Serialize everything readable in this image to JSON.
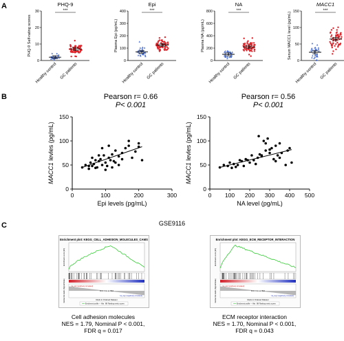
{
  "panels": {
    "a": "A",
    "b": "B",
    "c": "C"
  },
  "panel_a": [
    {
      "title": "PHQ-9",
      "ylabel": "PHQ-9 Self-rating scores",
      "ticks": [
        "0",
        "10",
        "20",
        "30"
      ],
      "ymax": 30,
      "sig": "***",
      "groups": [
        "Healthy control",
        "GC patients"
      ],
      "means": [
        2,
        7
      ],
      "italic": false
    },
    {
      "title": "Epi",
      "ylabel": "Plasma Epi (pg/mL)",
      "ticks": [
        "0",
        "100",
        "200",
        "300",
        "400"
      ],
      "ymax": 400,
      "sig": "***",
      "groups": [
        "Healthy control",
        "GC patients"
      ],
      "means": [
        70,
        125
      ],
      "italic": false
    },
    {
      "title": "NA",
      "ylabel": "Plasma NA (pg/mL)",
      "ticks": [
        "0",
        "200",
        "400",
        "600",
        "800"
      ],
      "ymax": 800,
      "sig": "***",
      "groups": [
        "Healthy control",
        "GC patients"
      ],
      "means": [
        100,
        220
      ],
      "italic": false
    },
    {
      "title": "MACC1",
      "ylabel": "Serum MACC1 level (pg/mL)",
      "ticks": [
        "0",
        "50",
        "100",
        "150"
      ],
      "ymax": 150,
      "sig": "***",
      "groups": [
        "Healthy control",
        "GC patients"
      ],
      "means": [
        25,
        65
      ],
      "italic": true
    }
  ],
  "panel_b": [
    {
      "pearson_label": "Pearson r= 0.66",
      "p_label": "P< 0.001",
      "xlabel": "Epi levels (pg/mL)",
      "ylabel": "MACC1 levles  (pg/mL)",
      "xticks": [
        "0",
        "100",
        "200",
        "300"
      ],
      "yticks": [
        "0",
        "50",
        "100",
        "150"
      ]
    },
    {
      "pearson_label": "Pearson r= 0.56",
      "p_label": "P< 0.001",
      "xlabel": "NA level (pg/mL)",
      "ylabel": "MACC1 levles  (pg/mL)",
      "xticks": [
        "0",
        "100",
        "200",
        "300",
        "400",
        "500"
      ],
      "yticks": [
        "0",
        "50",
        "100",
        "150"
      ]
    }
  ],
  "chart_data": [
    {
      "type": "scatter",
      "title": "Pearson r= 0.66",
      "subtitle": "P< 0.001",
      "xlabel": "Epi levels (pg/mL)",
      "ylabel": "MACC1 levles  (pg/mL)",
      "xlim": [
        0,
        300
      ],
      "ylim": [
        0,
        150
      ],
      "x": [
        30,
        40,
        50,
        55,
        60,
        65,
        70,
        75,
        80,
        85,
        90,
        95,
        100,
        105,
        110,
        115,
        120,
        125,
        130,
        140,
        150,
        160,
        170,
        180,
        190,
        200,
        210,
        100,
        120,
        140,
        80,
        60,
        90,
        110,
        130,
        150,
        170,
        50,
        70,
        200
      ],
      "y": [
        45,
        50,
        42,
        55,
        48,
        52,
        60,
        45,
        58,
        62,
        50,
        70,
        55,
        48,
        65,
        60,
        72,
        58,
        80,
        68,
        75,
        85,
        90,
        65,
        78,
        95,
        60,
        40,
        45,
        50,
        70,
        65,
        85,
        90,
        55,
        62,
        100,
        48,
        44,
        88
      ],
      "fit_line": {
        "x": [
          30,
          210
        ],
        "y": [
          45,
          88
        ]
      }
    },
    {
      "type": "scatter",
      "title": "Pearson r= 0.56",
      "subtitle": "P< 0.001",
      "xlabel": "NA level (pg/mL)",
      "ylabel": "MACC1 levles  (pg/mL)",
      "xlim": [
        0,
        500
      ],
      "ylim": [
        0,
        150
      ],
      "x": [
        50,
        70,
        90,
        100,
        120,
        140,
        150,
        160,
        180,
        200,
        210,
        220,
        240,
        250,
        260,
        270,
        280,
        290,
        300,
        310,
        320,
        330,
        340,
        350,
        360,
        380,
        400,
        410,
        130,
        170,
        230,
        260,
        300,
        350,
        280,
        330,
        390,
        110,
        190,
        245
      ],
      "y": [
        45,
        50,
        48,
        55,
        52,
        50,
        60,
        58,
        62,
        55,
        70,
        60,
        65,
        72,
        68,
        100,
        80,
        105,
        75,
        85,
        62,
        90,
        70,
        95,
        75,
        50,
        85,
        55,
        46,
        48,
        52,
        70,
        82,
        65,
        95,
        58,
        80,
        44,
        60,
        110
      ],
      "fit_line": {
        "x": [
          50,
          410
        ],
        "y": [
          45,
          82
        ]
      }
    }
  ],
  "panel_c": {
    "dataset": "GSE9116",
    "plots": [
      {
        "plot_title": "Enrichment plot: KEGG_CELL_ADHESION_MOLECULES_CAMS",
        "caption_lines": [
          "Cell adhesion molecules",
          "NES = 1.79, Nominal P < 0.001,",
          "FDR q = 0.017"
        ],
        "ylabel_top": "Enrichment score (ES)",
        "ylabel_bottom": "Ranked list metric (Signal2Noise)",
        "xlabel": "Rank in Ordered Dataset",
        "legend": [
          "Enrichment profile — Hits",
          "Ranking metric scores"
        ],
        "zero_label": "Zero cross at 7816",
        "pos_label": "'na_pos' (positively correlated)",
        "neg_label": "'na_neg' (negatively correlated)"
      },
      {
        "plot_title": "Enrichment plot: KEGG_ECM_RECEPTOR_INTERACTION",
        "caption_lines": [
          "ECM receptor interaction",
          "NES = 1.70, Nominal P < 0.001,",
          "FDR q = 0.043"
        ],
        "ylabel_top": "Enrichment score (ES)",
        "ylabel_bottom": "Ranked list metric (Signal2Noise)",
        "xlabel": "Rank in Ordered Dataset",
        "legend": [
          "Enrichment profile — Hits",
          "Ranking metric scores"
        ],
        "zero_label": "Zero cross at 7816",
        "pos_label": "'na_pos' (positively correlated)",
        "neg_label": "'na_neg' (negatively correlated)"
      }
    ]
  },
  "colors": {
    "healthy": "#4a6fd1",
    "gc": "#e0262c",
    "es_line": "#33cc33",
    "scatter": "#000000"
  }
}
